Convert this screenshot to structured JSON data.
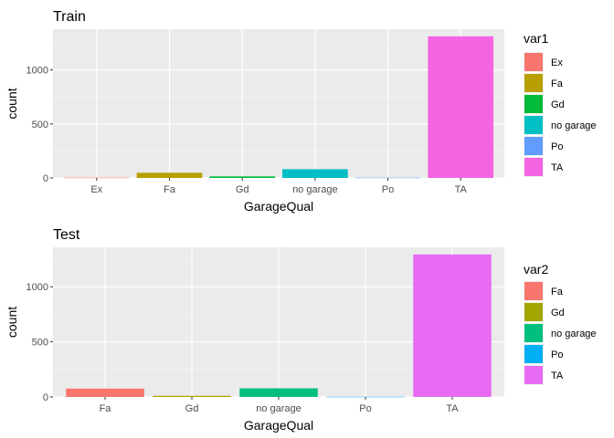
{
  "chart_data": [
    {
      "type": "bar",
      "title": "Train",
      "xlabel": "GarageQual",
      "ylabel": "count",
      "categories": [
        "Ex",
        "Fa",
        "Gd",
        "no garage",
        "Po",
        "TA"
      ],
      "values": [
        3,
        48,
        14,
        81,
        3,
        1311
      ],
      "colors": [
        "#F8766D",
        "#B79F00",
        "#00BA38",
        "#00BFC4",
        "#619CFF",
        "#F564E3"
      ],
      "ylim": [
        0,
        1377
      ],
      "yticks": [
        0,
        500,
        1000
      ],
      "grid": true,
      "legend_title": "var1",
      "legend_position": "right"
    },
    {
      "type": "bar",
      "title": "Test",
      "xlabel": "GarageQual",
      "ylabel": "count",
      "categories": [
        "Fa",
        "Gd",
        "no garage",
        "Po",
        "TA"
      ],
      "values": [
        76,
        10,
        78,
        2,
        1293
      ],
      "colors": [
        "#F8766D",
        "#A3A500",
        "#00BF7D",
        "#00B0F6",
        "#E76BF3"
      ],
      "ylim": [
        0,
        1358
      ],
      "yticks": [
        0,
        500,
        1000
      ],
      "grid": true,
      "legend_title": "var2",
      "legend_position": "right"
    }
  ]
}
